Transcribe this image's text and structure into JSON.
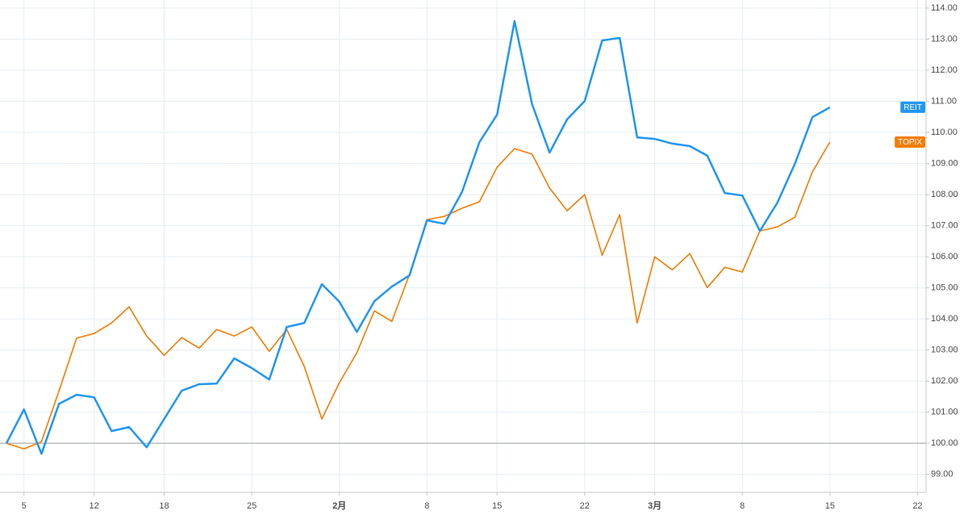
{
  "chart_data": {
    "type": "line",
    "categories": [
      null,
      "5",
      null,
      null,
      null,
      "12",
      null,
      null,
      null,
      "18",
      null,
      null,
      null,
      null,
      "25",
      null,
      null,
      null,
      null,
      "2月",
      null,
      null,
      null,
      null,
      "8",
      null,
      null,
      null,
      "15",
      null,
      null,
      null,
      null,
      "22",
      null,
      null,
      null,
      "3月",
      null,
      null,
      null,
      null,
      "8",
      null,
      null,
      null,
      null,
      "15",
      null,
      null,
      null,
      null,
      "22"
    ],
    "series": [
      {
        "name": "REIT",
        "color": "#2196f3",
        "values": [
          100.0,
          101.09,
          99.66,
          101.27,
          101.56,
          101.48,
          100.39,
          100.52,
          99.87,
          100.78,
          101.69,
          101.9,
          101.92,
          102.73,
          102.42,
          102.05,
          103.74,
          103.87,
          105.12,
          104.55,
          103.58,
          104.57,
          105.04,
          105.4,
          107.17,
          107.06,
          108.08,
          109.69,
          110.57,
          113.58,
          110.91,
          109.35,
          110.42,
          111.01,
          112.96,
          113.04,
          109.84,
          109.79,
          109.64,
          109.56,
          109.25,
          108.05,
          107.97,
          106.83,
          107.74,
          108.99,
          110.49,
          110.81,
          null,
          null,
          null,
          null,
          null
        ]
      },
      {
        "name": "TOPIX",
        "color": "#f57c00",
        "values": [
          100.0,
          99.82,
          100.05,
          101.69,
          103.38,
          103.53,
          103.87,
          104.39,
          103.45,
          102.83,
          103.4,
          103.06,
          103.66,
          103.45,
          103.74,
          102.96,
          103.66,
          102.47,
          100.78,
          101.95,
          102.91,
          104.26,
          103.92,
          105.43,
          107.19,
          107.3,
          107.56,
          107.77,
          108.88,
          109.48,
          109.3,
          108.21,
          107.48,
          108.0,
          106.05,
          107.35,
          103.87,
          106.0,
          105.58,
          106.1,
          105.01,
          105.66,
          105.51,
          106.83,
          106.96,
          107.27,
          108.73,
          109.69,
          null,
          null,
          null,
          null,
          null
        ]
      }
    ],
    "baseline": 100,
    "ylim": [
      98.42,
      114.26
    ],
    "yticks": [
      {
        "value": 99,
        "label": "99.00"
      },
      {
        "value": 100,
        "label": "100.00"
      },
      {
        "value": 101,
        "label": "101.00"
      },
      {
        "value": 102,
        "label": "102.00"
      },
      {
        "value": 103,
        "label": "103.00"
      },
      {
        "value": 104,
        "label": "104.00"
      },
      {
        "value": 105,
        "label": "105.00"
      },
      {
        "value": 106,
        "label": "106.00"
      },
      {
        "value": 107,
        "label": "107.00"
      },
      {
        "value": 108,
        "label": "108.00"
      },
      {
        "value": 109,
        "label": "109.00"
      },
      {
        "value": 110,
        "label": "110.00"
      },
      {
        "value": 111,
        "label": "111.00"
      },
      {
        "value": 112,
        "label": "112.00"
      },
      {
        "value": 113,
        "label": "113.00"
      },
      {
        "value": 114,
        "label": "114.00"
      }
    ],
    "grid": true
  }
}
